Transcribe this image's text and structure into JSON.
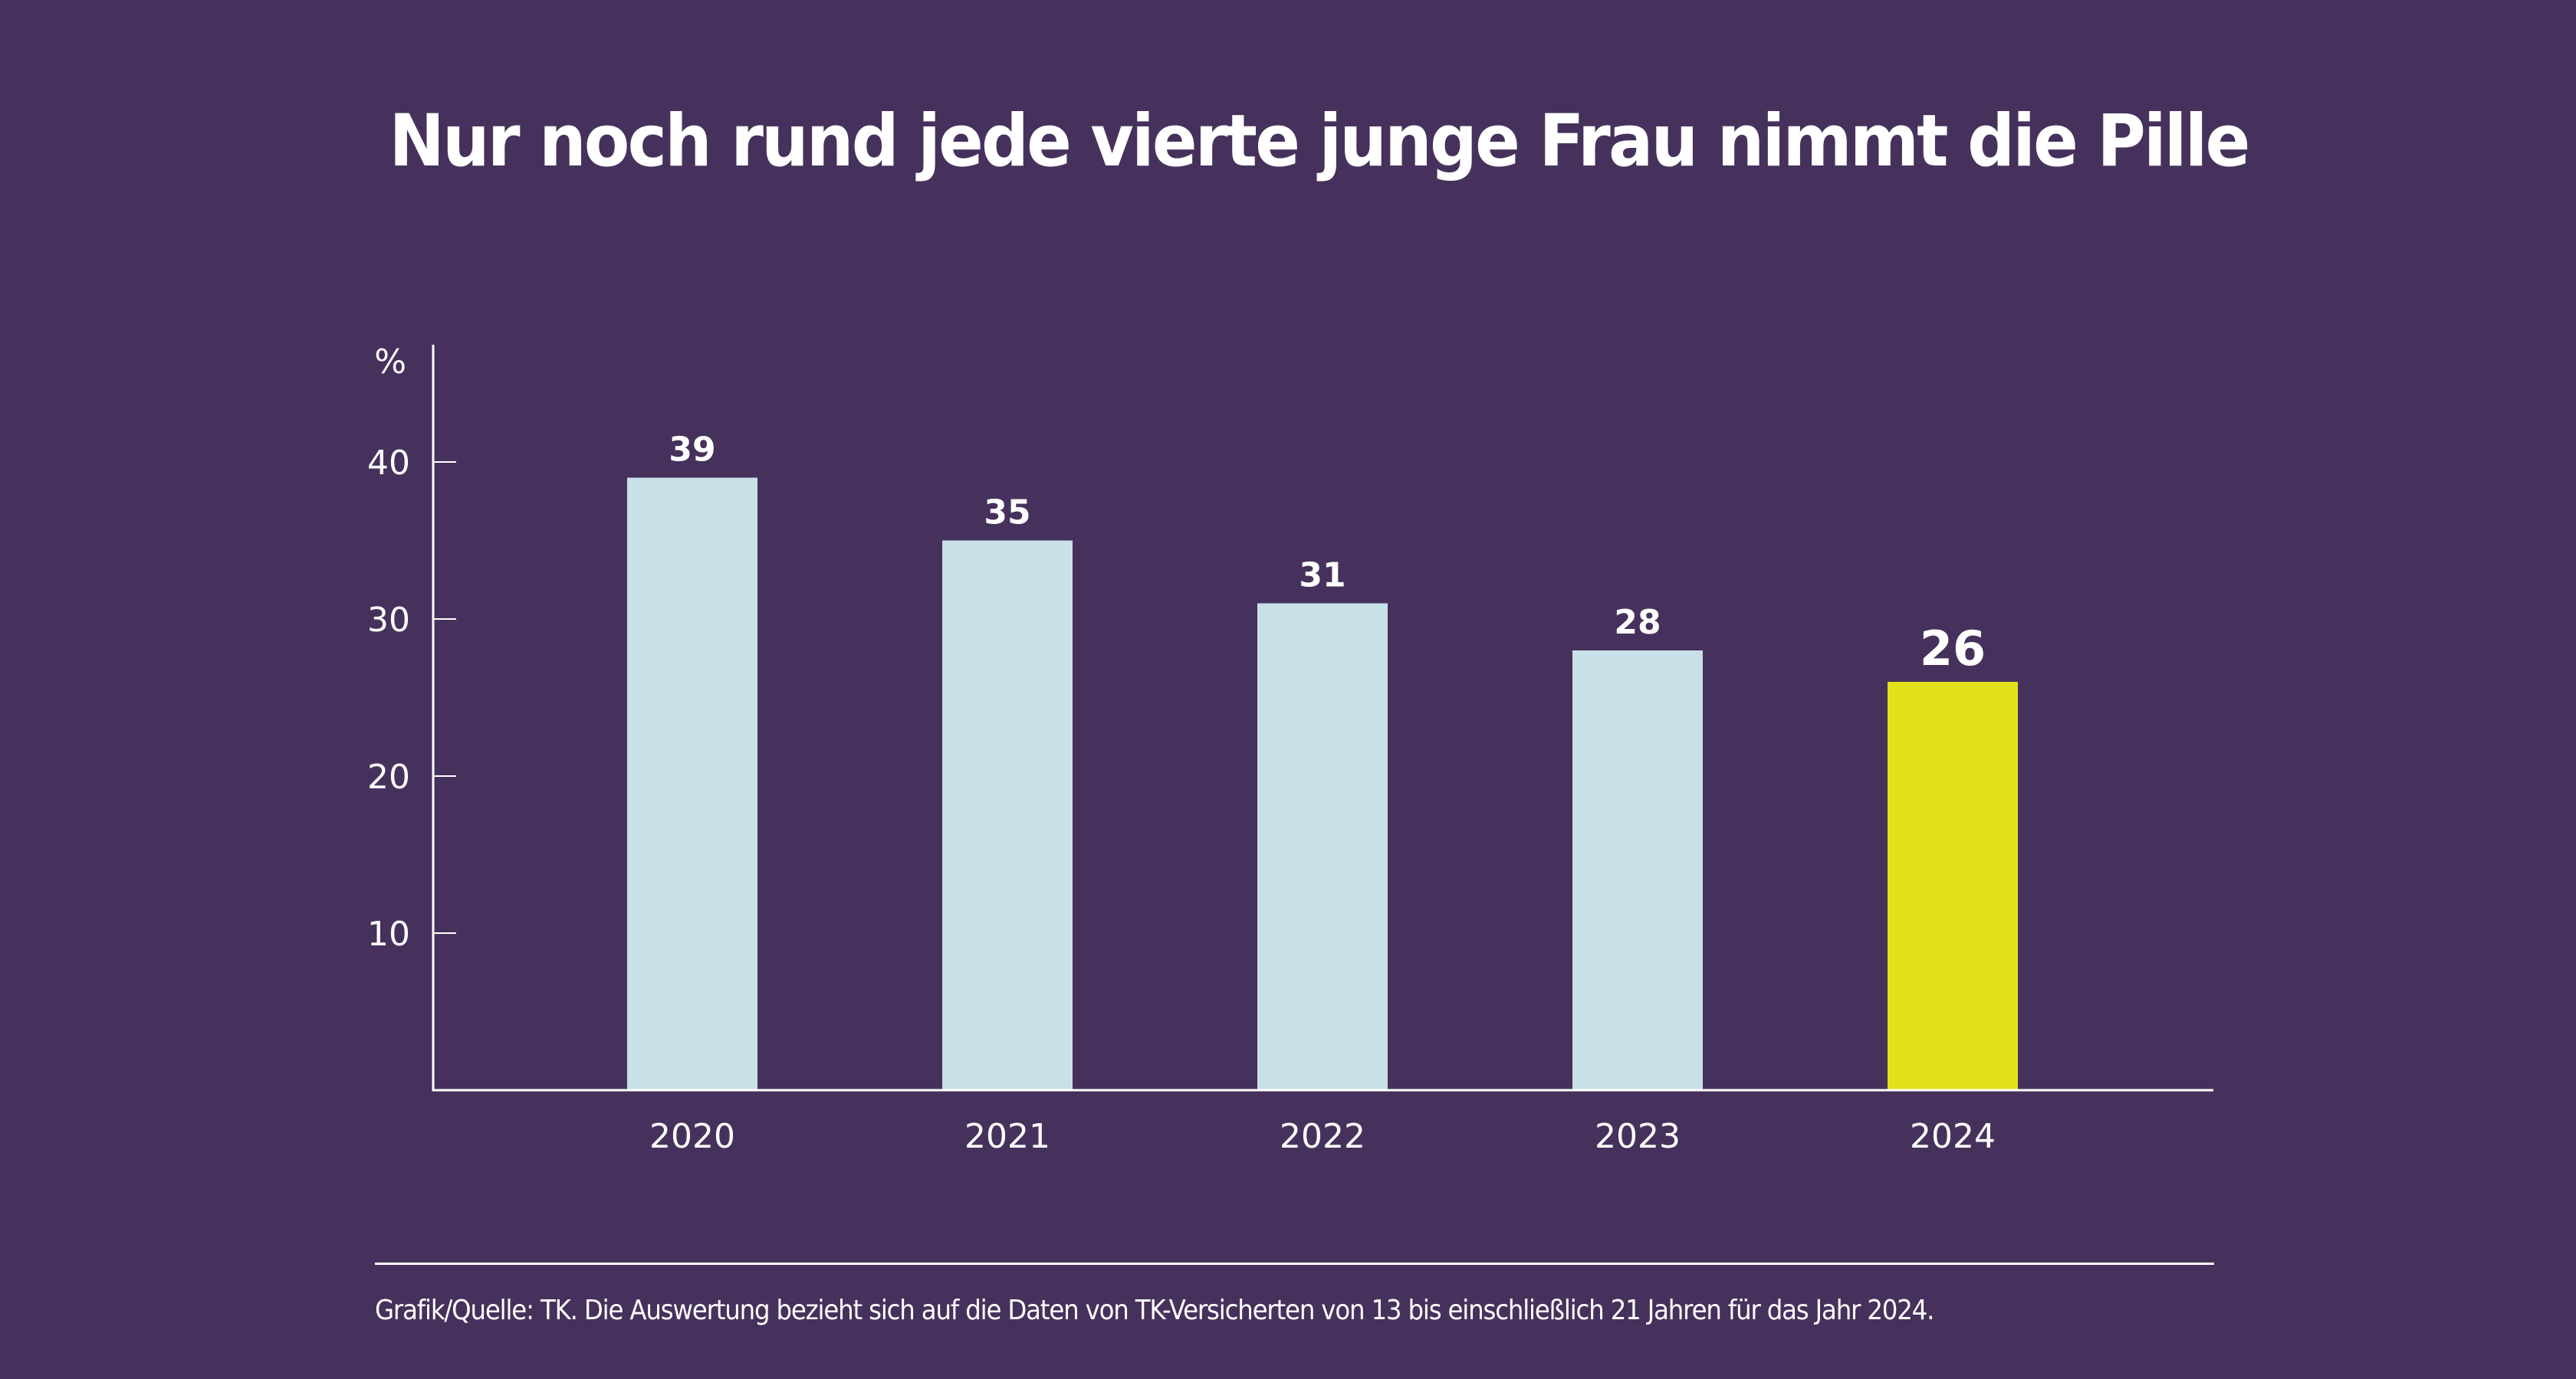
{
  "title": "Nur noch rund jede vierte junge Frau nimmt die Pille",
  "footer": "Grafik/Quelle: TK. Die Auswertung bezieht sich auf die Daten von TK-Versicherten von 13 bis einschließlich 21 Jahren für das Jahr 2024.",
  "colors": {
    "background": "#46315c",
    "bar": "#c8e0e7",
    "highlight_bar": "#e3e01c",
    "text": "#ffffff"
  },
  "chart_data": {
    "type": "bar",
    "title": "Nur noch rund jede vierte junge Frau nimmt die Pille",
    "xlabel": "",
    "ylabel": "%",
    "categories": [
      "2020",
      "2021",
      "2022",
      "2023",
      "2024"
    ],
    "values": [
      39,
      35,
      31,
      28,
      26
    ],
    "data_labels": [
      "39",
      "35",
      "31",
      "28",
      "26"
    ],
    "highlight_index": 4,
    "yticks": [
      10,
      20,
      30,
      40
    ],
    "ytick_labels": [
      "10",
      "20",
      "30",
      "40"
    ],
    "ylim": [
      0,
      47
    ],
    "grid": false,
    "legend": "none"
  }
}
